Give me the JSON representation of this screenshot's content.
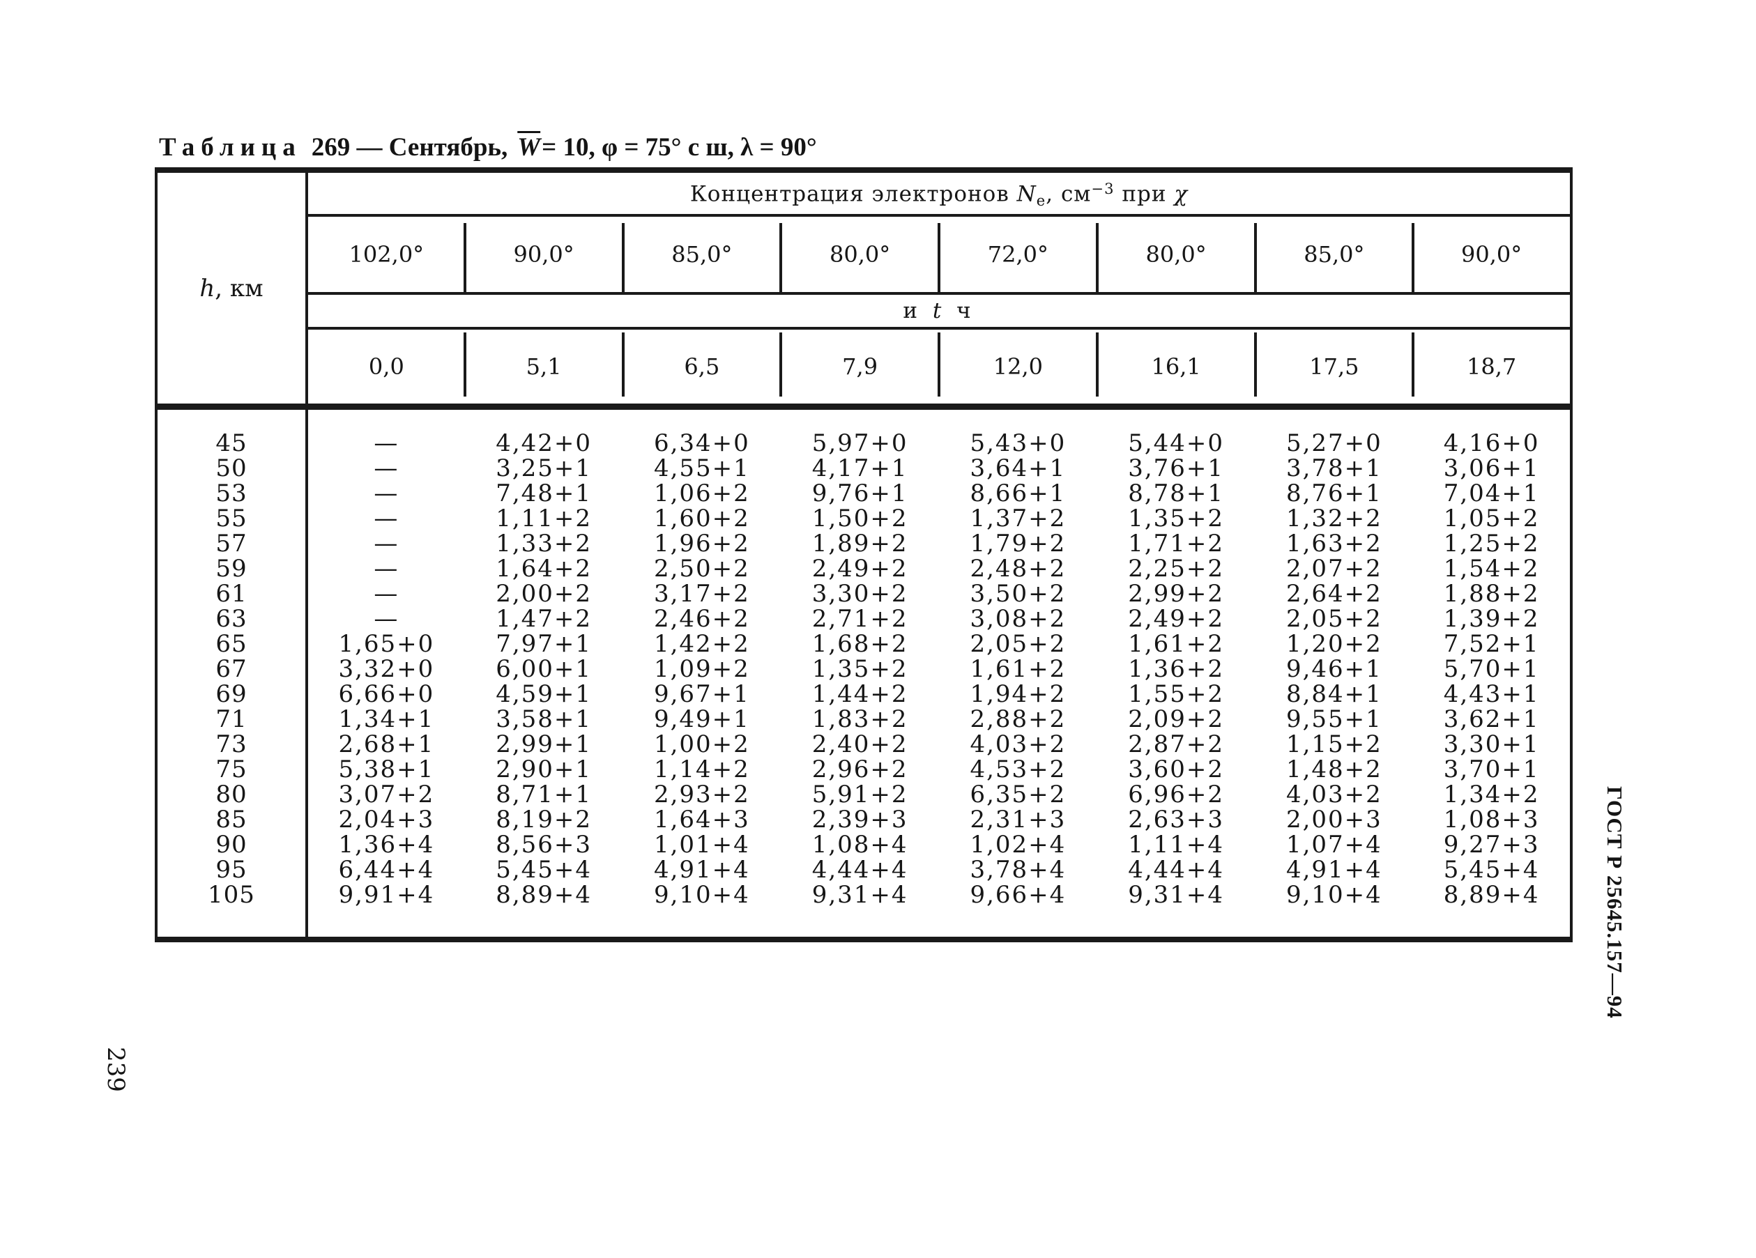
{
  "page": {
    "number": "239",
    "gost_label": "ГОСТ Р 25645.157—94",
    "ink_color": "#161616",
    "background": "#ffffff"
  },
  "title": {
    "word": "Таблица",
    "mid": "269 — Сентябрь,",
    "w_symbol": "W",
    "tail": "= 10, φ = 75° с ш, λ = 90°"
  },
  "table": {
    "h_label": {
      "symbol": "h",
      "unit": ", км"
    },
    "group_title": {
      "t1": "Концентрация электронов ",
      "n_symbol": "N",
      "n_sub": "e",
      "t2": ", см",
      "sup": "−3",
      "t3": " при ",
      "chi": "χ"
    },
    "band": {
      "t1": "и",
      "t_symbol": "t",
      "t2": "ч"
    },
    "chi_values": [
      "102,0°",
      "90,0°",
      "85,0°",
      "80,0°",
      "72,0°",
      "80,0°",
      "85,0°",
      "90,0°"
    ],
    "t_values": [
      "0,0",
      "5,1",
      "6,5",
      "7,9",
      "12,0",
      "16,1",
      "17,5",
      "18,7"
    ],
    "rows": [
      {
        "h": "45",
        "values": [
          "—",
          "4,42+0",
          "6,34+0",
          "5,97+0",
          "5,43+0",
          "5,44+0",
          "5,27+0",
          "4,16+0"
        ]
      },
      {
        "h": "50",
        "values": [
          "—",
          "3,25+1",
          "4,55+1",
          "4,17+1",
          "3,64+1",
          "3,76+1",
          "3,78+1",
          "3,06+1"
        ]
      },
      {
        "h": "53",
        "values": [
          "—",
          "7,48+1",
          "1,06+2",
          "9,76+1",
          "8,66+1",
          "8,78+1",
          "8,76+1",
          "7,04+1"
        ]
      },
      {
        "h": "55",
        "values": [
          "—",
          "1,11+2",
          "1,60+2",
          "1,50+2",
          "1,37+2",
          "1,35+2",
          "1,32+2",
          "1,05+2"
        ]
      },
      {
        "h": "57",
        "values": [
          "—",
          "1,33+2",
          "1,96+2",
          "1,89+2",
          "1,79+2",
          "1,71+2",
          "1,63+2",
          "1,25+2"
        ]
      },
      {
        "h": "59",
        "values": [
          "—",
          "1,64+2",
          "2,50+2",
          "2,49+2",
          "2,48+2",
          "2,25+2",
          "2,07+2",
          "1,54+2"
        ]
      },
      {
        "h": "61",
        "values": [
          "—",
          "2,00+2",
          "3,17+2",
          "3,30+2",
          "3,50+2",
          "2,99+2",
          "2,64+2",
          "1,88+2"
        ]
      },
      {
        "h": "63",
        "values": [
          "—",
          "1,47+2",
          "2,46+2",
          "2,71+2",
          "3,08+2",
          "2,49+2",
          "2,05+2",
          "1,39+2"
        ]
      },
      {
        "h": "65",
        "values": [
          "1,65+0",
          "7,97+1",
          "1,42+2",
          "1,68+2",
          "2,05+2",
          "1,61+2",
          "1,20+2",
          "7,52+1"
        ]
      },
      {
        "h": "67",
        "values": [
          "3,32+0",
          "6,00+1",
          "1,09+2",
          "1,35+2",
          "1,61+2",
          "1,36+2",
          "9,46+1",
          "5,70+1"
        ]
      },
      {
        "h": "69",
        "values": [
          "6,66+0",
          "4,59+1",
          "9,67+1",
          "1,44+2",
          "1,94+2",
          "1,55+2",
          "8,84+1",
          "4,43+1"
        ]
      },
      {
        "h": "71",
        "values": [
          "1,34+1",
          "3,58+1",
          "9,49+1",
          "1,83+2",
          "2,88+2",
          "2,09+2",
          "9,55+1",
          "3,62+1"
        ]
      },
      {
        "h": "73",
        "values": [
          "2,68+1",
          "2,99+1",
          "1,00+2",
          "2,40+2",
          "4,03+2",
          "2,87+2",
          "1,15+2",
          "3,30+1"
        ]
      },
      {
        "h": "75",
        "values": [
          "5,38+1",
          "2,90+1",
          "1,14+2",
          "2,96+2",
          "4,53+2",
          "3,60+2",
          "1,48+2",
          "3,70+1"
        ]
      },
      {
        "h": "80",
        "values": [
          "3,07+2",
          "8,71+1",
          "2,93+2",
          "5,91+2",
          "6,35+2",
          "6,96+2",
          "4,03+2",
          "1,34+2"
        ]
      },
      {
        "h": "85",
        "values": [
          "2,04+3",
          "8,19+2",
          "1,64+3",
          "2,39+3",
          "2,31+3",
          "2,63+3",
          "2,00+3",
          "1,08+3"
        ]
      },
      {
        "h": "90",
        "values": [
          "1,36+4",
          "8,56+3",
          "1,01+4",
          "1,08+4",
          "1,02+4",
          "1,11+4",
          "1,07+4",
          "9,27+3"
        ]
      },
      {
        "h": "95",
        "values": [
          "6,44+4",
          "5,45+4",
          "4,91+4",
          "4,44+4",
          "3,78+4",
          "4,44+4",
          "4,91+4",
          "5,45+4"
        ]
      },
      {
        "h": "105",
        "values": [
          "9,91+4",
          "8,89+4",
          "9,10+4",
          "9,31+4",
          "9,66+4",
          "9,31+4",
          "9,10+4",
          "8,89+4"
        ]
      }
    ]
  }
}
